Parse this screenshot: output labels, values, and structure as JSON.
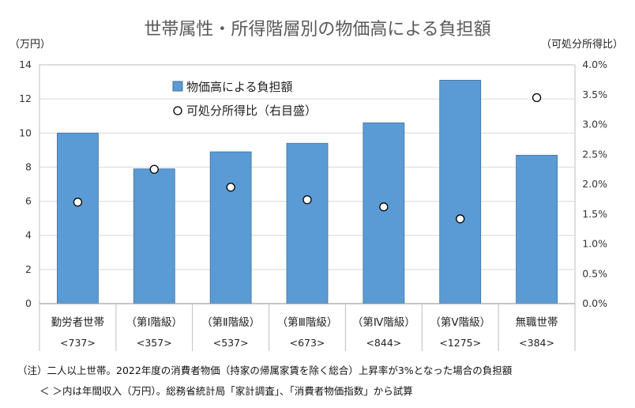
{
  "chart_data": {
    "type": "bar",
    "title": "世帯属性・所得階層別の物価高による負担額",
    "y_left_unit": "（万円）",
    "y_right_unit": "（可処分所得比）",
    "categories": [
      "勤労者世帯",
      "（第Ⅰ階級）",
      "（第Ⅱ階級）",
      "（第Ⅲ階級）",
      "（第Ⅳ階級）",
      "（第Ⅴ階級）",
      "無職世帯"
    ],
    "incomes": [
      "<737>",
      "<357>",
      "<537>",
      "<673>",
      "<844>",
      "<1275>",
      "<384>"
    ],
    "series": [
      {
        "name": "物価高による負担額",
        "type": "bar",
        "axis": "left",
        "color": "#5b9bd5",
        "values": [
          10.0,
          7.9,
          8.9,
          9.4,
          10.6,
          13.1,
          8.7
        ]
      },
      {
        "name": "可処分所得比（右目盛）",
        "type": "scatter",
        "axis": "right",
        "values": [
          1.7,
          2.25,
          1.95,
          1.74,
          1.62,
          1.42,
          3.45
        ]
      }
    ],
    "ylim_left": [
      0,
      14
    ],
    "yticks_left": [
      0,
      2,
      4,
      6,
      8,
      10,
      12,
      14
    ],
    "ylim_right": [
      0,
      4.0
    ],
    "yticks_right": [
      "0.0%",
      "0.5%",
      "1.0%",
      "1.5%",
      "2.0%",
      "2.5%",
      "3.0%",
      "3.5%",
      "4.0%"
    ],
    "grid": true,
    "legend": "top-center"
  },
  "notes": [
    "（注）二人以上世帯。2022年度の消費者物価（持家の帰属家賃を除く総合）上昇率が3%となった場合の負担額",
    "＜ ＞内は年間収入（万円）。総務省統計局「家計調査」、「消費者物価指数」から試算"
  ]
}
